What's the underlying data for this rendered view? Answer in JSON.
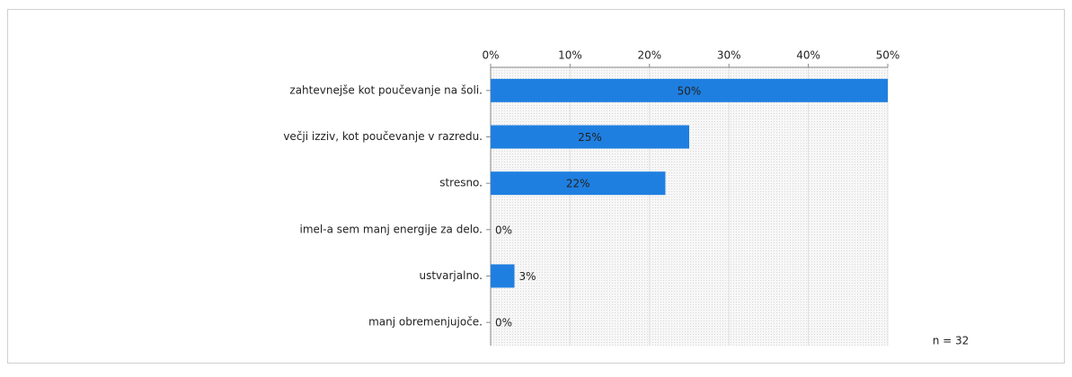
{
  "chart_data": {
    "type": "bar",
    "orientation": "horizontal",
    "categories": [
      "zahtevnejše kot poučevanje na šoli.",
      "večji izziv, kot poučevanje v razredu.",
      "stresno.",
      "imel-a sem manj energije za delo.",
      "ustvarjalno.",
      "manj obremenjujoče."
    ],
    "values": [
      50,
      25,
      22,
      0,
      3,
      0
    ],
    "value_labels": [
      "50%",
      "25%",
      "22%",
      "0%",
      "3%",
      "0%"
    ],
    "color": "#1f7fe0",
    "xlim": [
      0,
      50
    ],
    "xticks": [
      {
        "value": 0,
        "label": "0%"
      },
      {
        "value": 10,
        "label": "10%"
      },
      {
        "value": 20,
        "label": "20%"
      },
      {
        "value": 30,
        "label": "30%"
      },
      {
        "value": 40,
        "label": "40%"
      },
      {
        "value": 50,
        "label": "50%"
      }
    ],
    "grid": true,
    "annotation": "n = 32"
  }
}
